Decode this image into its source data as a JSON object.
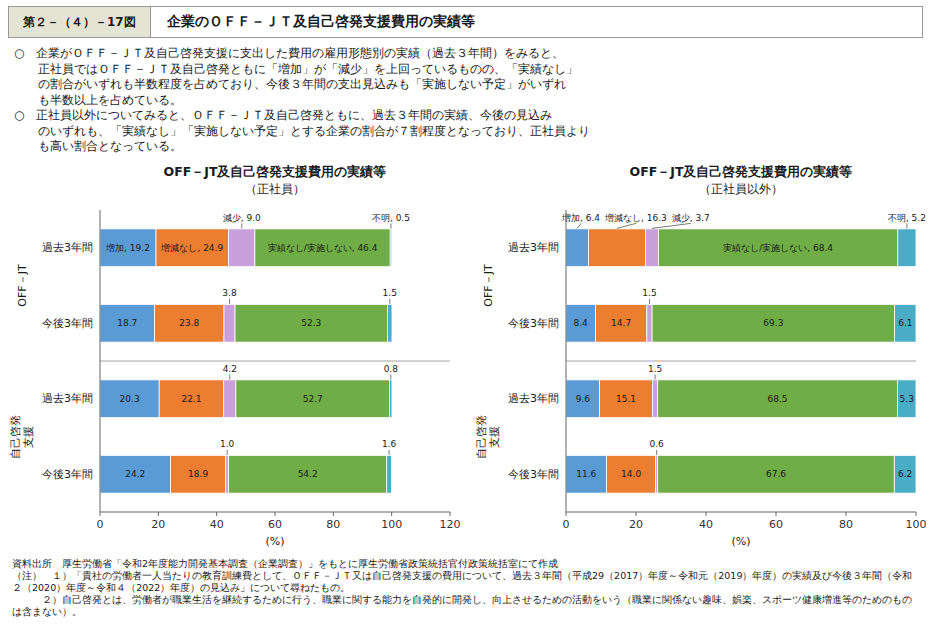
{
  "header_label": "第２－（４）－17図",
  "title": "企業のＯＦＦ－ＪＴ及自己啓発支援費用の実績等",
  "body_text": [
    "○　企業がＯＦＦ－ＪＴ及自己啓発支援に支出した費用の雇用形態別の実績（過去３年間）をみると、",
    "　　正社員ではＯＦＦ－ＪＴ及自己啓発ともに「増加」が「減少」を上回っているものの、「実績なし」",
    "　　の割合がいずれも半数程度を占めており、今後３年間の支出見込みも「実施しない予定」がいずれ",
    "　　も半数以上を占めている。",
    "○　正社員以外についてみると、ＯＦＦ－ＪＴ及自己啓発ともに、過去３年間の実績、今後の見込み",
    "　　のいずれも、「実績なし」「実施しない予定」とする企業の割合が７割程度となっており、正社員より",
    "　　も高い割合となっている。"
  ],
  "source": "資料出所　厚生労働省「令和2年度能力開発基本調査（企業調査）」をもとに厚生労働省政策統括官付政策統括室にて作成",
  "notes": [
    "（注）　１）「貴社の労働者一人当たりの教育訓練費として、ＯＦＦ－ＪＴ又は自己啓発支援の費用について、過去３年間（平成29（2017）年度～令和元（2019）年度）の実績及び今後３年間（令和２（2020）年度～令和４（2022）年度）の見込み」について尋ねたもの。",
    "　　　２）自己啓発とは、労働者が職業生活を継続するために行う、職業に関する能力を自発的に開発し、向上させるための活動をいう（職業に関係ない趣味、娯楽、スポーツ健康増進等のためのものは含まない）。"
  ],
  "chart_data": [
    {
      "type": "bar",
      "orientation": "horizontal",
      "stacked": true,
      "data_labels": true,
      "grid": false,
      "title": "OFF－JT及自己啓発支援費用の実績等",
      "subtitle": "（正社員）",
      "xlabel": "(%)",
      "categories": [
        "過去3年間",
        "今後3年間",
        "過去3年間",
        "今後3年間"
      ],
      "groups": [
        "OFF－JT",
        "自己啓発\n支援"
      ],
      "xlim": [
        0,
        120
      ],
      "xticks": [
        0,
        20,
        40,
        60,
        80,
        100,
        120
      ],
      "series": [
        {
          "color": "#5B9BD5",
          "values": [
            19.2,
            18.7,
            20.3,
            24.2
          ],
          "value_labels": [
            "増加, 19.2",
            "18.7",
            "20.3",
            "24.2"
          ]
        },
        {
          "color": "#ED7D31",
          "values": [
            24.9,
            23.8,
            22.1,
            18.9
          ],
          "value_labels": [
            "増減なし, 24.9",
            "23.8",
            "22.1",
            "18.9"
          ]
        },
        {
          "color": "#C9A0DC",
          "values": [
            9.0,
            3.8,
            4.2,
            1.0
          ],
          "value_labels": [
            "減少, 9.0",
            "3.8",
            "4.2",
            "1.0"
          ]
        },
        {
          "color": "#70AD47",
          "values": [
            46.4,
            52.3,
            52.7,
            54.2
          ],
          "value_labels": [
            "実績なし/実施しない, 46.4",
            "52.3",
            "52.7",
            "54.2"
          ]
        },
        {
          "color": "#4BACC6",
          "values": [
            0.5,
            1.5,
            0.8,
            1.6
          ],
          "value_labels": [
            "不明, 0.5",
            "1.5",
            "0.8",
            "1.6"
          ]
        }
      ]
    },
    {
      "type": "bar",
      "orientation": "horizontal",
      "stacked": true,
      "data_labels": true,
      "grid": false,
      "title": "OFF－JT及自己啓発支援費用の実績等",
      "subtitle": "（正社員以外）",
      "xlabel": "(%)",
      "categories": [
        "過去3年間",
        "今後3年間",
        "過去3年間",
        "今後3年間"
      ],
      "groups": [
        "OFF－JT",
        "自己啓発\n支援"
      ],
      "xlim": [
        0,
        100
      ],
      "xticks": [
        0,
        20,
        40,
        60,
        80,
        100
      ],
      "series": [
        {
          "color": "#5B9BD5",
          "values": [
            6.4,
            8.4,
            9.6,
            11.6
          ],
          "value_labels": [
            "増加, 6.4",
            "8.4",
            "9.6",
            "11.6"
          ]
        },
        {
          "color": "#ED7D31",
          "values": [
            16.3,
            14.7,
            15.1,
            14.0
          ],
          "value_labels": [
            "増減なし, 16.3",
            "14.7",
            "15.1",
            "14.0"
          ]
        },
        {
          "color": "#C9A0DC",
          "values": [
            3.7,
            1.5,
            1.5,
            0.6
          ],
          "value_labels": [
            "減少, 3.7",
            "1.5",
            "1.5",
            "0.6"
          ]
        },
        {
          "color": "#70AD47",
          "values": [
            68.4,
            69.3,
            68.5,
            67.6
          ],
          "value_labels": [
            "実績なし/実施しない, 68.4",
            "69.3",
            "68.5",
            "67.6"
          ]
        },
        {
          "color": "#4BACC6",
          "values": [
            5.2,
            6.1,
            5.3,
            6.2
          ],
          "value_labels": [
            "不明, 5.2",
            "6.1",
            "5.3",
            "6.2"
          ]
        }
      ]
    }
  ]
}
